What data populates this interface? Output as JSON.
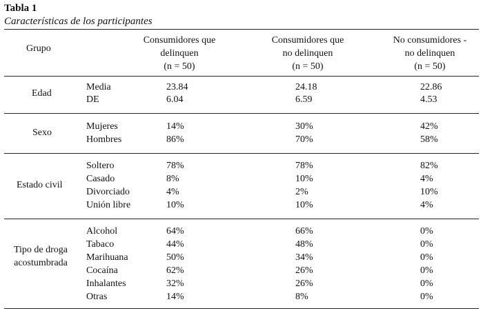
{
  "table": {
    "number": "Tabla 1",
    "title": "Características de los participantes",
    "headers": {
      "grupo": "Grupo",
      "col_a": [
        "Consumidores que",
        "delinquen",
        "(n = 50)"
      ],
      "col_b": [
        "Consumidores que",
        "no delinquen",
        "(n = 50)"
      ],
      "col_c": [
        "No consumidores -",
        "no delinquen",
        "(n = 50)"
      ]
    },
    "groups": [
      {
        "label": [
          "Edad"
        ],
        "rows": [
          {
            "label": "Media",
            "a": "23.84",
            "b": "24.18",
            "c": "22.86"
          },
          {
            "label": "DE",
            "a": "6.04",
            "b": "6.59",
            "c": "4.53"
          }
        ]
      },
      {
        "label": [
          "Sexo"
        ],
        "rows": [
          {
            "label": "Mujeres",
            "a": "14%",
            "b": "30%",
            "c": "42%"
          },
          {
            "label": "Hombres",
            "a": "86%",
            "b": "70%",
            "c": "58%"
          }
        ]
      },
      {
        "label": [
          "Estado civil"
        ],
        "rows": [
          {
            "label": "Soltero",
            "a": "78%",
            "b": "78%",
            "c": "82%"
          },
          {
            "label": "Casado",
            "a": "8%",
            "b": "10%",
            "c": "4%"
          },
          {
            "label": "Divorciado",
            "a": "4%",
            "b": "2%",
            "c": "10%"
          },
          {
            "label": "Unión libre",
            "a": "10%",
            "b": "10%",
            "c": "4%"
          }
        ]
      },
      {
        "label": [
          "Tipo de droga",
          "acostumbrada"
        ],
        "rows": [
          {
            "label": "Alcohol",
            "a": "64%",
            "b": "66%",
            "c": "0%"
          },
          {
            "label": "Tabaco",
            "a": "44%",
            "b": "48%",
            "c": "0%"
          },
          {
            "label": "Marihuana",
            "a": "50%",
            "b": "34%",
            "c": "0%"
          },
          {
            "label": "Cocaína",
            "a": "62%",
            "b": "26%",
            "c": "0%"
          },
          {
            "label": "Inhalantes",
            "a": "32%",
            "b": "26%",
            "c": "0%"
          },
          {
            "label": "Otras",
            "a": "14%",
            "b": "8%",
            "c": "0%"
          }
        ]
      }
    ]
  }
}
